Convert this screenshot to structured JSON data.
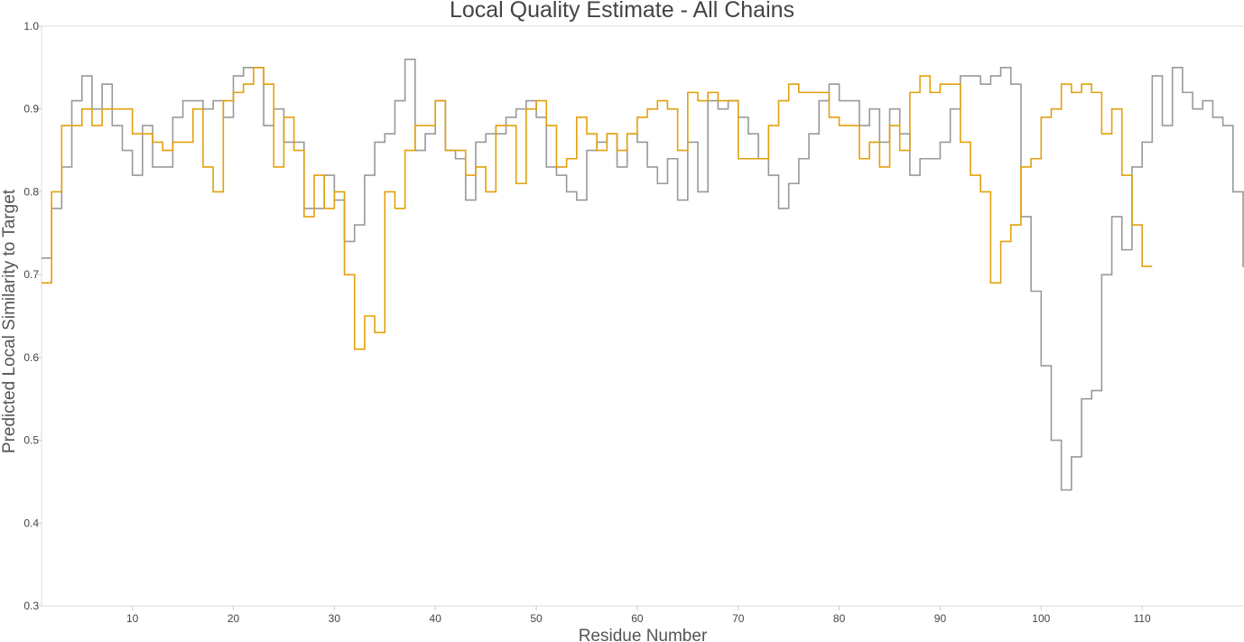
{
  "chart_data": {
    "type": "line",
    "step": true,
    "title": "Local Quality Estimate - All Chains",
    "xlabel": "Residue Number",
    "ylabel": "Predicted Local Similarity to Target",
    "xlim": [
      1,
      120
    ],
    "ylim": [
      0.3,
      1.0
    ],
    "xticks": [
      10,
      20,
      30,
      40,
      50,
      60,
      70,
      80,
      90,
      100,
      110
    ],
    "yticks": [
      0.3,
      0.4,
      0.5,
      0.6,
      0.7,
      0.8,
      0.9,
      1.0
    ],
    "grid": false,
    "legend": "none",
    "series": [
      {
        "color": "#999999",
        "x_start": 1,
        "values": [
          0.72,
          0.78,
          0.83,
          0.91,
          0.94,
          0.9,
          0.93,
          0.88,
          0.85,
          0.82,
          0.88,
          0.83,
          0.83,
          0.89,
          0.91,
          0.91,
          0.9,
          0.91,
          0.89,
          0.94,
          0.95,
          0.95,
          0.88,
          0.9,
          0.86,
          0.86,
          0.78,
          0.78,
          0.82,
          0.79,
          0.74,
          0.76,
          0.82,
          0.86,
          0.87,
          0.91,
          0.96,
          0.85,
          0.87,
          0.91,
          0.85,
          0.84,
          0.79,
          0.86,
          0.87,
          0.87,
          0.89,
          0.9,
          0.91,
          0.89,
          0.83,
          0.82,
          0.8,
          0.79,
          0.85,
          0.86,
          0.87,
          0.83,
          0.87,
          0.86,
          0.83,
          0.81,
          0.84,
          0.79,
          0.86,
          0.8,
          0.91,
          0.9,
          0.91,
          0.89,
          0.87,
          0.84,
          0.82,
          0.78,
          0.81,
          0.84,
          0.87,
          0.91,
          0.93,
          0.91,
          0.91,
          0.88,
          0.9,
          0.86,
          0.9,
          0.87,
          0.82,
          0.84,
          0.84,
          0.86,
          0.9,
          0.94,
          0.94,
          0.93,
          0.94,
          0.95,
          0.93,
          0.77,
          0.68,
          0.59,
          0.5,
          0.44,
          0.48,
          0.55,
          0.56,
          0.7,
          0.77,
          0.73,
          0.83,
          0.86,
          0.94,
          0.88,
          0.95,
          0.92,
          0.9,
          0.91,
          0.89,
          0.88,
          0.8,
          0.71
        ]
      },
      {
        "color": "#e3a00b",
        "x_start": 1,
        "values": [
          0.69,
          0.8,
          0.88,
          0.88,
          0.9,
          0.88,
          0.9,
          0.9,
          0.9,
          0.87,
          0.87,
          0.86,
          0.85,
          0.86,
          0.86,
          0.9,
          0.83,
          0.8,
          0.91,
          0.92,
          0.93,
          0.95,
          0.93,
          0.83,
          0.89,
          0.85,
          0.77,
          0.82,
          0.78,
          0.8,
          0.7,
          0.61,
          0.65,
          0.63,
          0.8,
          0.78,
          0.85,
          0.88,
          0.88,
          0.91,
          0.85,
          0.85,
          0.82,
          0.83,
          0.8,
          0.88,
          0.88,
          0.81,
          0.9,
          0.91,
          0.88,
          0.83,
          0.84,
          0.89,
          0.87,
          0.85,
          0.87,
          0.85,
          0.87,
          0.89,
          0.9,
          0.91,
          0.9,
          0.85,
          0.92,
          0.91,
          0.92,
          0.91,
          0.91,
          0.84,
          0.84,
          0.84,
          0.88,
          0.91,
          0.93,
          0.92,
          0.92,
          0.92,
          0.89,
          0.88,
          0.88,
          0.84,
          0.86,
          0.83,
          0.88,
          0.85,
          0.92,
          0.94,
          0.92,
          0.93,
          0.93,
          0.86,
          0.82,
          0.8,
          0.69,
          0.74,
          0.76,
          0.83,
          0.84,
          0.89,
          0.9,
          0.93,
          0.92,
          0.93,
          0.92,
          0.87,
          0.9,
          0.82,
          0.76,
          0.71
        ]
      }
    ]
  }
}
